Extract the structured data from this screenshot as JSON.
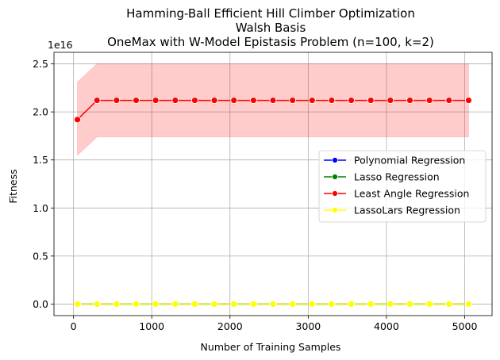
{
  "chart_data": {
    "type": "line",
    "title": [
      "Hamming-Ball Efficient Hill Climber Optimization",
      "Walsh Basis",
      "OneMax with W-Model Epistasis Problem (n=100, k=2)"
    ],
    "xlabel": "Number of Training Samples",
    "ylabel": "Fitness",
    "y_scale_note": "1e16",
    "xlim": [
      -250,
      5350
    ],
    "ylim": [
      -0.12,
      2.62
    ],
    "x_ticks": [
      0,
      1000,
      2000,
      3000,
      4000,
      5000
    ],
    "x_tick_labels": [
      "0",
      "1000",
      "2000",
      "3000",
      "4000",
      "5000"
    ],
    "y_ticks": [
      0.0,
      0.5,
      1.0,
      1.5,
      2.0,
      2.5
    ],
    "y_tick_labels": [
      "0.0",
      "0.5",
      "1.0",
      "1.5",
      "2.0",
      "2.5"
    ],
    "grid": true,
    "legend_position": "center-right",
    "x": [
      50,
      300,
      550,
      800,
      1050,
      1300,
      1550,
      1800,
      2050,
      2300,
      2550,
      2800,
      3050,
      3300,
      3550,
      3800,
      4050,
      4300,
      4550,
      4800,
      5050
    ],
    "series": [
      {
        "name": "Polynomial Regression",
        "color": "#0000ff",
        "values": [
          0,
          0,
          0,
          0,
          0,
          0,
          0,
          0,
          0,
          0,
          0,
          0,
          0,
          0,
          0,
          0,
          0,
          0,
          0,
          0,
          0
        ]
      },
      {
        "name": "Lasso Regression",
        "color": "#008000",
        "values": [
          0,
          0,
          0,
          0,
          0,
          0,
          0,
          0,
          0,
          0,
          0,
          0,
          0,
          0,
          0,
          0,
          0,
          0,
          0,
          0,
          0
        ]
      },
      {
        "name": "Least Angle Regression",
        "color": "#ff0000",
        "values": [
          1.92,
          2.12,
          2.12,
          2.12,
          2.12,
          2.12,
          2.12,
          2.12,
          2.12,
          2.12,
          2.12,
          2.12,
          2.12,
          2.12,
          2.12,
          2.12,
          2.12,
          2.12,
          2.12,
          2.12,
          2.12
        ],
        "band_lower": [
          1.55,
          1.74,
          1.74,
          1.74,
          1.74,
          1.74,
          1.74,
          1.74,
          1.74,
          1.74,
          1.74,
          1.74,
          1.74,
          1.74,
          1.74,
          1.74,
          1.74,
          1.74,
          1.74,
          1.74,
          1.74
        ],
        "band_upper": [
          2.31,
          2.5,
          2.5,
          2.5,
          2.5,
          2.5,
          2.5,
          2.5,
          2.5,
          2.5,
          2.5,
          2.5,
          2.5,
          2.5,
          2.5,
          2.5,
          2.5,
          2.5,
          2.5,
          2.5,
          2.5
        ],
        "band_color": "#ff0000"
      },
      {
        "name": "LassoLars Regression",
        "color": "#ffff00",
        "values": [
          0,
          0,
          0,
          0,
          0,
          0,
          0,
          0,
          0,
          0,
          0,
          0,
          0,
          0,
          0,
          0,
          0,
          0,
          0,
          0,
          0
        ]
      }
    ]
  }
}
